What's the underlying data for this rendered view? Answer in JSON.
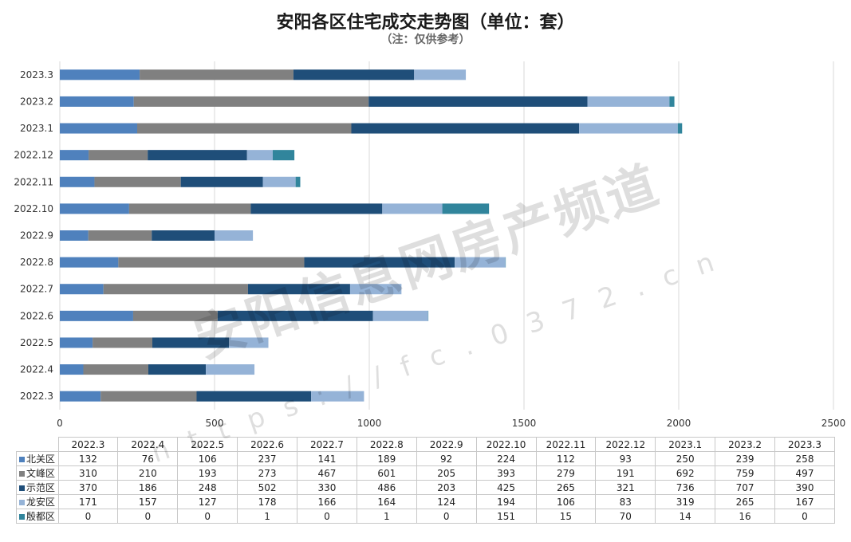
{
  "chart_data": {
    "type": "bar",
    "orientation": "horizontal",
    "stacked": true,
    "title": "安阳各区住宅成交走势图（单位：套）",
    "subtitle": "（注：仅供参考）",
    "categories": [
      "2022.3",
      "2022.4",
      "2022.5",
      "2022.6",
      "2022.7",
      "2022.8",
      "2022.9",
      "2022.10",
      "2022.11",
      "2022.12",
      "2023.1",
      "2023.2",
      "2023.3"
    ],
    "series": [
      {
        "name": "北关区",
        "color": "#4f81bd",
        "values": [
          132,
          76,
          106,
          237,
          141,
          189,
          92,
          224,
          112,
          93,
          250,
          239,
          258
        ]
      },
      {
        "name": "文峰区",
        "color": "#808080",
        "values": [
          310,
          210,
          193,
          273,
          467,
          601,
          205,
          393,
          279,
          191,
          692,
          759,
          497
        ]
      },
      {
        "name": "示范区",
        "color": "#1f4e79",
        "values": [
          370,
          186,
          248,
          502,
          330,
          486,
          203,
          425,
          265,
          321,
          736,
          707,
          390
        ]
      },
      {
        "name": "龙安区",
        "color": "#95b3d7",
        "values": [
          171,
          157,
          127,
          178,
          166,
          164,
          124,
          194,
          106,
          83,
          319,
          265,
          167
        ]
      },
      {
        "name": "殷都区",
        "color": "#31859c",
        "values": [
          0,
          0,
          0,
          1,
          0,
          1,
          0,
          151,
          15,
          70,
          14,
          16,
          0
        ]
      }
    ],
    "xlim": [
      0,
      2500
    ],
    "xticks": [
      0,
      500,
      1000,
      1500,
      2000,
      2500
    ],
    "grid": true,
    "data_table": true
  },
  "watermark": {
    "text": "安阳信息网房产频道",
    "url": "https://fc.0372.cn"
  }
}
